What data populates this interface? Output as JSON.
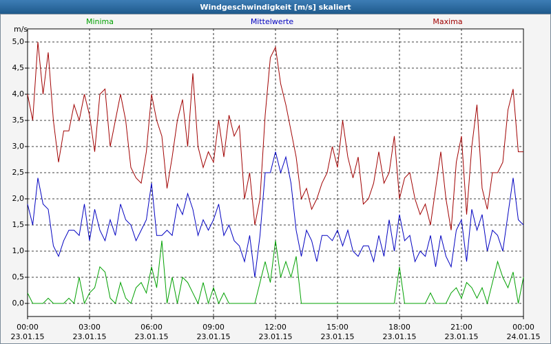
{
  "chart_data": {
    "type": "line",
    "title": "Windgeschwindigkeit [m/s] skaliert",
    "y_label": "m/s",
    "xlim": [
      0,
      24
    ],
    "ylim": [
      -0.25,
      5.25
    ],
    "grid": true,
    "xticks": [
      {
        "value": 0,
        "label": "00:00"
      },
      {
        "value": 3,
        "label": "03:00"
      },
      {
        "value": 6,
        "label": "06:00"
      },
      {
        "value": 9,
        "label": "09:00"
      },
      {
        "value": 12,
        "label": "12:00"
      },
      {
        "value": 15,
        "label": "15:00"
      },
      {
        "value": 18,
        "label": "18:00"
      },
      {
        "value": 21,
        "label": "21:00"
      },
      {
        "value": 24,
        "label": "00:00"
      }
    ],
    "xtick_dates": [
      "23.01.15",
      "23.01.15",
      "23.01.15",
      "23.01.15",
      "23.01.15",
      "23.01.15",
      "23.01.15",
      "23.01.15",
      "24.01.15"
    ],
    "yticks": [
      {
        "value": 0,
        "label": "0,0"
      },
      {
        "value": 0.5,
        "label": "0,5"
      },
      {
        "value": 1,
        "label": "1,0"
      },
      {
        "value": 1.5,
        "label": "1,5"
      },
      {
        "value": 2,
        "label": "2,0"
      },
      {
        "value": 2.5,
        "label": "2,5"
      },
      {
        "value": 3,
        "label": "3,0"
      },
      {
        "value": 3.5,
        "label": "3,5"
      },
      {
        "value": 4,
        "label": "4,0"
      },
      {
        "value": 4.5,
        "label": "4,5"
      },
      {
        "value": 5,
        "label": "5,0"
      }
    ],
    "x": [
      0,
      0.25,
      0.5,
      0.75,
      1,
      1.25,
      1.5,
      1.75,
      2,
      2.25,
      2.5,
      2.75,
      3,
      3.25,
      3.5,
      3.75,
      4,
      4.25,
      4.5,
      4.75,
      5,
      5.25,
      5.5,
      5.75,
      6,
      6.25,
      6.5,
      6.75,
      7,
      7.25,
      7.5,
      7.75,
      8,
      8.25,
      8.5,
      8.75,
      9,
      9.25,
      9.5,
      9.75,
      10,
      10.25,
      10.5,
      10.75,
      11,
      11.25,
      11.5,
      11.75,
      12,
      12.25,
      12.5,
      12.75,
      13,
      13.25,
      13.5,
      13.75,
      14,
      14.25,
      14.5,
      14.75,
      15,
      15.25,
      15.5,
      15.75,
      16,
      16.25,
      16.5,
      16.75,
      17,
      17.25,
      17.5,
      17.75,
      18,
      18.25,
      18.5,
      18.75,
      19,
      19.25,
      19.5,
      19.75,
      20,
      20.25,
      20.5,
      20.75,
      21,
      21.25,
      21.5,
      21.75,
      22,
      22.25,
      22.5,
      22.75,
      23,
      23.25,
      23.5,
      23.75,
      24
    ],
    "series": [
      {
        "name": "Minima",
        "color": "#00a000",
        "values": [
          0.2,
          0,
          0,
          0,
          0.1,
          0,
          0,
          0,
          0.1,
          0,
          0.5,
          0,
          0.2,
          0.3,
          0.7,
          0.6,
          0.1,
          0,
          0.4,
          0.1,
          0,
          0.3,
          0.4,
          0.2,
          0.7,
          0.3,
          1.2,
          0,
          0.5,
          0,
          0.5,
          0.4,
          0.2,
          0,
          0.4,
          0,
          0.3,
          0,
          0.2,
          0,
          0,
          0,
          0,
          0,
          0,
          0.4,
          0.8,
          0.4,
          1.2,
          0.5,
          0.8,
          0.5,
          0.9,
          0,
          0,
          0,
          0,
          0,
          0,
          0,
          0,
          0,
          0,
          0,
          0,
          0,
          0,
          0,
          0,
          0,
          0,
          0,
          0.7,
          0,
          0,
          0,
          0,
          0,
          0.2,
          0,
          0,
          0,
          0.2,
          0.3,
          0.1,
          0.4,
          0.3,
          0.1,
          0.3,
          0,
          0.4,
          0.8,
          0.5,
          0.3,
          0.6,
          0,
          0.5
        ]
      },
      {
        "name": "Mittelwerte",
        "color": "#0000c0",
        "values": [
          1.9,
          1.5,
          2.4,
          1.9,
          1.8,
          1.1,
          0.9,
          1.2,
          1.4,
          1.4,
          1.3,
          1.9,
          1.2,
          1.8,
          1.4,
          1.2,
          1.6,
          1.3,
          1.9,
          1.6,
          1.5,
          1.2,
          1.4,
          1.6,
          2.3,
          1.3,
          1.3,
          1.4,
          1.3,
          1.9,
          1.7,
          2.1,
          1.8,
          1.3,
          1.6,
          1.4,
          1.6,
          1.9,
          1.3,
          1.5,
          1.2,
          1.1,
          0.8,
          1.3,
          0.5,
          1.3,
          2.5,
          2.5,
          2.9,
          2.5,
          2.8,
          2.3,
          1.4,
          0.9,
          1.4,
          1.2,
          0.8,
          1.3,
          1.3,
          1.2,
          1.4,
          1.1,
          1.4,
          1.0,
          0.9,
          1.1,
          1.1,
          0.8,
          1.3,
          0.9,
          1.6,
          1.0,
          1.7,
          1.2,
          1.3,
          0.8,
          1.0,
          0.9,
          1.3,
          0.7,
          1.3,
          0.9,
          0.7,
          1.4,
          1.6,
          0.8,
          1.8,
          1.4,
          1.7,
          1.0,
          1.4,
          1.3,
          1.0,
          1.7,
          2.4,
          1.6,
          1.5
        ]
      },
      {
        "name": "Maxima",
        "color": "#a00000",
        "values": [
          4.0,
          3.5,
          5.0,
          4.0,
          4.8,
          3.5,
          2.7,
          3.3,
          3.3,
          3.8,
          3.5,
          4.0,
          3.6,
          2.9,
          4.0,
          4.1,
          3.0,
          3.5,
          4.0,
          3.5,
          2.6,
          2.4,
          2.3,
          2.9,
          4.0,
          3.5,
          3.2,
          2.2,
          2.8,
          3.5,
          3.9,
          3.0,
          4.4,
          3.0,
          2.6,
          2.9,
          2.7,
          3.5,
          2.8,
          3.6,
          3.2,
          3.4,
          2.0,
          2.5,
          1.5,
          2.0,
          3.6,
          4.7,
          4.9,
          4.2,
          3.8,
          3.3,
          2.8,
          2.0,
          2.2,
          1.8,
          2.0,
          2.3,
          2.5,
          3.0,
          2.6,
          3.5,
          2.8,
          2.4,
          2.8,
          1.9,
          2.0,
          2.3,
          2.9,
          2.3,
          2.5,
          3.2,
          2.0,
          2.4,
          2.5,
          2.0,
          1.7,
          1.9,
          1.5,
          2.2,
          2.9,
          2.0,
          1.4,
          2.7,
          3.2,
          1.7,
          3.0,
          3.8,
          2.2,
          1.8,
          2.5,
          2.5,
          2.7,
          3.7,
          4.1,
          2.9,
          2.9
        ]
      }
    ]
  }
}
